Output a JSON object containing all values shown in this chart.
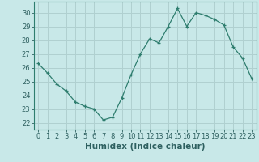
{
  "x": [
    0,
    1,
    2,
    3,
    4,
    5,
    6,
    7,
    8,
    9,
    10,
    11,
    12,
    13,
    14,
    15,
    16,
    17,
    18,
    19,
    20,
    21,
    22,
    23
  ],
  "y": [
    26.3,
    25.6,
    24.8,
    24.3,
    23.5,
    23.2,
    23.0,
    22.2,
    22.4,
    23.8,
    25.5,
    27.0,
    28.1,
    27.8,
    29.0,
    30.3,
    29.0,
    30.0,
    29.8,
    29.5,
    29.1,
    27.5,
    26.7,
    25.2
  ],
  "line_color": "#2e7d6e",
  "marker": "+",
  "bg_color": "#c8e8e8",
  "grid_color": "#b0d0d0",
  "xlabel": "Humidex (Indice chaleur)",
  "xlim": [
    -0.5,
    23.5
  ],
  "ylim": [
    21.5,
    30.8
  ],
  "yticks": [
    22,
    23,
    24,
    25,
    26,
    27,
    28,
    29,
    30
  ],
  "xticks": [
    0,
    1,
    2,
    3,
    4,
    5,
    6,
    7,
    8,
    9,
    10,
    11,
    12,
    13,
    14,
    15,
    16,
    17,
    18,
    19,
    20,
    21,
    22,
    23
  ],
  "tick_label_fontsize": 6,
  "xlabel_fontsize": 7.5,
  "axis_color": "#2e7d6e",
  "tick_color": "#2e6060"
}
